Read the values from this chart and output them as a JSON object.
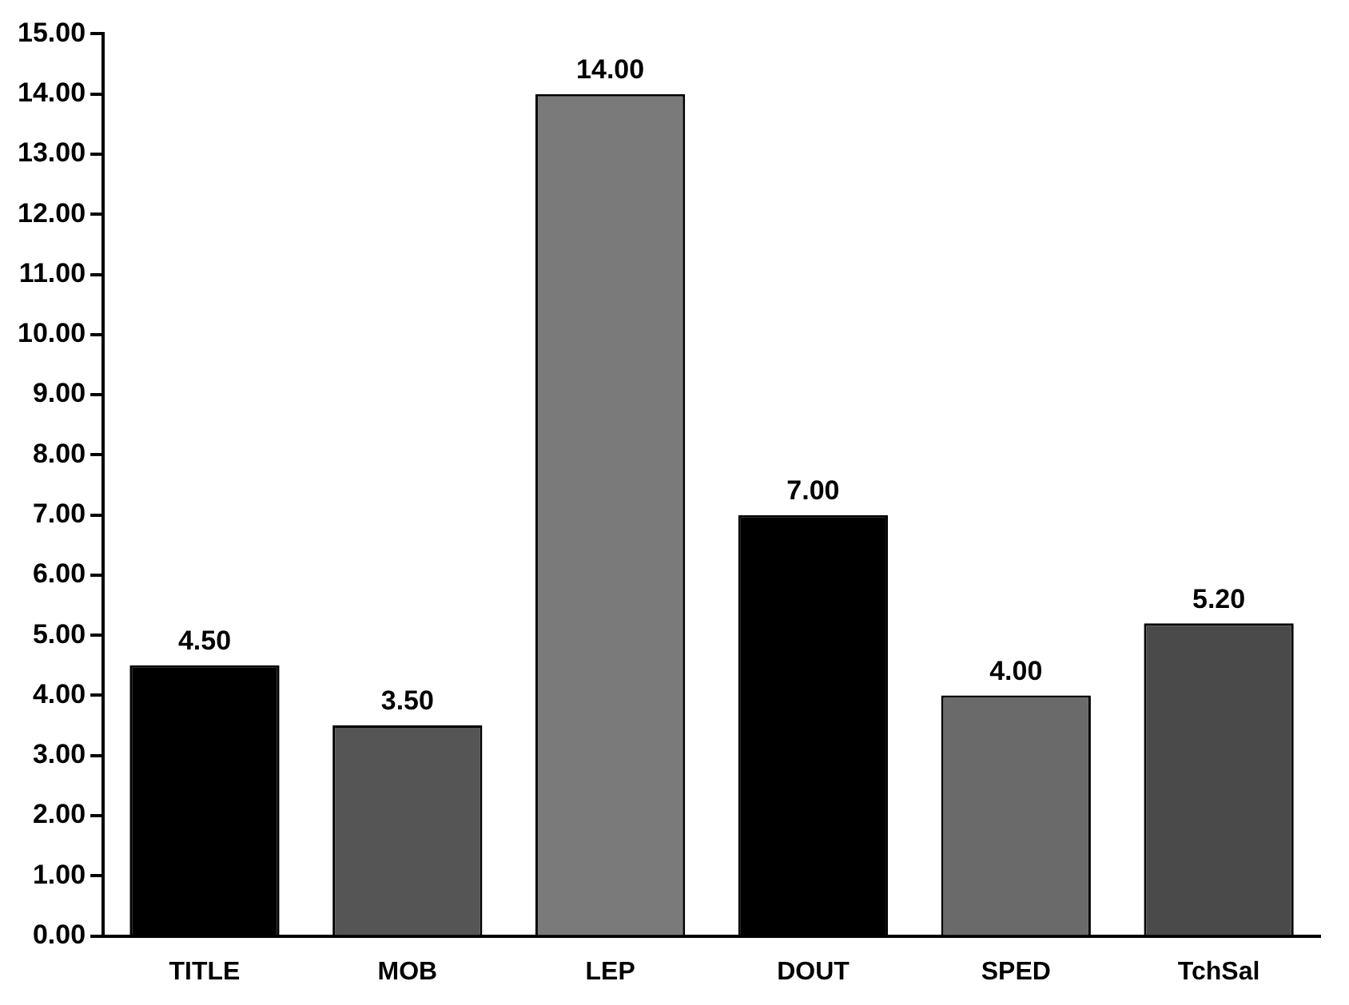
{
  "chart_data": {
    "type": "bar",
    "categories": [
      "TITLE",
      "MOB",
      "LEP",
      "DOUT",
      "SPED",
      "TchSal"
    ],
    "values": [
      4.5,
      3.5,
      14.0,
      7.0,
      4.0,
      5.2
    ],
    "value_labels": [
      "4.50",
      "3.50",
      "14.00",
      "7.00",
      "4.00",
      "5.20"
    ],
    "colors": [
      "#000000",
      "#555555",
      "#7a7a7a",
      "#000000",
      "#6a6a6a",
      "#4a4a4a"
    ],
    "ylim": [
      0,
      15
    ],
    "yticks": [
      {
        "value": 0,
        "label": "0.00"
      },
      {
        "value": 1,
        "label": "1.00"
      },
      {
        "value": 2,
        "label": "2.00"
      },
      {
        "value": 3,
        "label": "3.00"
      },
      {
        "value": 4,
        "label": "4.00"
      },
      {
        "value": 5,
        "label": "5.00"
      },
      {
        "value": 6,
        "label": "6.00"
      },
      {
        "value": 7,
        "label": "7.00"
      },
      {
        "value": 8,
        "label": "8.00"
      },
      {
        "value": 9,
        "label": "9.00"
      },
      {
        "value": 10,
        "label": "10.00"
      },
      {
        "value": 11,
        "label": "11.00"
      },
      {
        "value": 12,
        "label": "12.00"
      },
      {
        "value": 13,
        "label": "13.00"
      },
      {
        "value": 14,
        "label": "14.00"
      },
      {
        "value": 15,
        "label": "15.00"
      }
    ],
    "grid": false,
    "legend": false
  }
}
